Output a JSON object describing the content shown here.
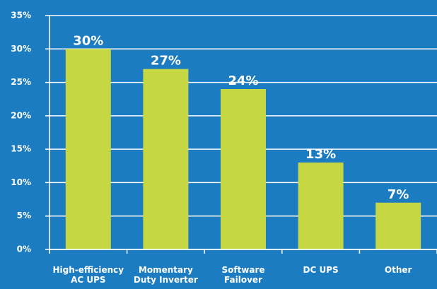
{
  "chart_data": {
    "type": "bar",
    "categories": [
      "High-efficiency AC UPS",
      "Momentary Duty Inverter",
      "Software Failover",
      "DC UPS",
      "Other"
    ],
    "values": [
      30,
      27,
      24,
      13,
      7
    ],
    "value_labels": [
      "30%",
      "27%",
      "24%",
      "13%",
      "7%"
    ],
    "color": "#c5d743",
    "ylim": [
      0,
      35
    ],
    "yticks": [
      {
        "value": 0,
        "label": "0%"
      },
      {
        "value": 5,
        "label": "5%"
      },
      {
        "value": 10,
        "label": "10%"
      },
      {
        "value": 15,
        "label": "15%"
      },
      {
        "value": 20,
        "label": "20%"
      },
      {
        "value": 25,
        "label": "25%"
      },
      {
        "value": 30,
        "label": "30%"
      },
      {
        "value": 35,
        "label": "35%"
      }
    ],
    "grid": true
  }
}
